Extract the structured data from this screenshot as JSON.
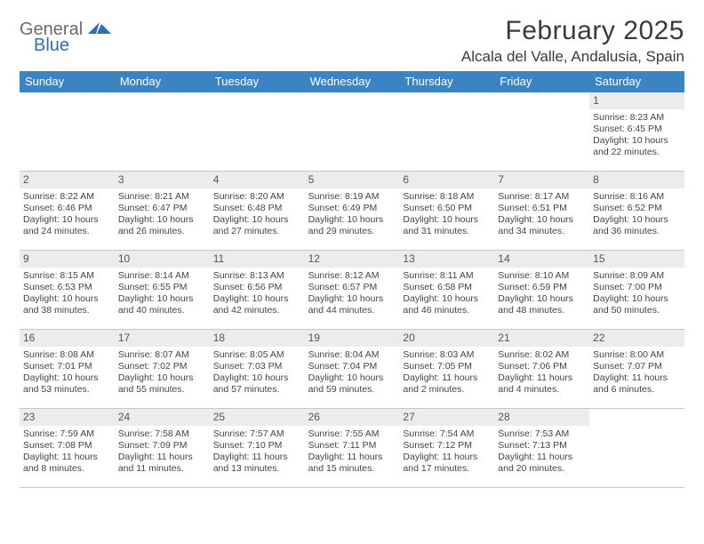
{
  "brand": {
    "part1": "General",
    "part2": "Blue"
  },
  "title": "February 2025",
  "location": "Alcala del Valle, Andalusia, Spain",
  "colors": {
    "header_bg": "#3b84c4",
    "header_text": "#ffffff",
    "daynum_bg": "#ececec",
    "border": "#c7c7c7",
    "brand_gray": "#6b6b6b",
    "brand_blue": "#2f6fb3"
  },
  "weekdays": [
    "Sunday",
    "Monday",
    "Tuesday",
    "Wednesday",
    "Thursday",
    "Friday",
    "Saturday"
  ],
  "weeks": [
    [
      null,
      null,
      null,
      null,
      null,
      null,
      {
        "n": "1",
        "sr": "Sunrise: 8:23 AM",
        "ss": "Sunset: 6:45 PM",
        "d1": "Daylight: 10 hours",
        "d2": "and 22 minutes."
      }
    ],
    [
      {
        "n": "2",
        "sr": "Sunrise: 8:22 AM",
        "ss": "Sunset: 6:46 PM",
        "d1": "Daylight: 10 hours",
        "d2": "and 24 minutes."
      },
      {
        "n": "3",
        "sr": "Sunrise: 8:21 AM",
        "ss": "Sunset: 6:47 PM",
        "d1": "Daylight: 10 hours",
        "d2": "and 26 minutes."
      },
      {
        "n": "4",
        "sr": "Sunrise: 8:20 AM",
        "ss": "Sunset: 6:48 PM",
        "d1": "Daylight: 10 hours",
        "d2": "and 27 minutes."
      },
      {
        "n": "5",
        "sr": "Sunrise: 8:19 AM",
        "ss": "Sunset: 6:49 PM",
        "d1": "Daylight: 10 hours",
        "d2": "and 29 minutes."
      },
      {
        "n": "6",
        "sr": "Sunrise: 8:18 AM",
        "ss": "Sunset: 6:50 PM",
        "d1": "Daylight: 10 hours",
        "d2": "and 31 minutes."
      },
      {
        "n": "7",
        "sr": "Sunrise: 8:17 AM",
        "ss": "Sunset: 6:51 PM",
        "d1": "Daylight: 10 hours",
        "d2": "and 34 minutes."
      },
      {
        "n": "8",
        "sr": "Sunrise: 8:16 AM",
        "ss": "Sunset: 6:52 PM",
        "d1": "Daylight: 10 hours",
        "d2": "and 36 minutes."
      }
    ],
    [
      {
        "n": "9",
        "sr": "Sunrise: 8:15 AM",
        "ss": "Sunset: 6:53 PM",
        "d1": "Daylight: 10 hours",
        "d2": "and 38 minutes."
      },
      {
        "n": "10",
        "sr": "Sunrise: 8:14 AM",
        "ss": "Sunset: 6:55 PM",
        "d1": "Daylight: 10 hours",
        "d2": "and 40 minutes."
      },
      {
        "n": "11",
        "sr": "Sunrise: 8:13 AM",
        "ss": "Sunset: 6:56 PM",
        "d1": "Daylight: 10 hours",
        "d2": "and 42 minutes."
      },
      {
        "n": "12",
        "sr": "Sunrise: 8:12 AM",
        "ss": "Sunset: 6:57 PM",
        "d1": "Daylight: 10 hours",
        "d2": "and 44 minutes."
      },
      {
        "n": "13",
        "sr": "Sunrise: 8:11 AM",
        "ss": "Sunset: 6:58 PM",
        "d1": "Daylight: 10 hours",
        "d2": "and 46 minutes."
      },
      {
        "n": "14",
        "sr": "Sunrise: 8:10 AM",
        "ss": "Sunset: 6:59 PM",
        "d1": "Daylight: 10 hours",
        "d2": "and 48 minutes."
      },
      {
        "n": "15",
        "sr": "Sunrise: 8:09 AM",
        "ss": "Sunset: 7:00 PM",
        "d1": "Daylight: 10 hours",
        "d2": "and 50 minutes."
      }
    ],
    [
      {
        "n": "16",
        "sr": "Sunrise: 8:08 AM",
        "ss": "Sunset: 7:01 PM",
        "d1": "Daylight: 10 hours",
        "d2": "and 53 minutes."
      },
      {
        "n": "17",
        "sr": "Sunrise: 8:07 AM",
        "ss": "Sunset: 7:02 PM",
        "d1": "Daylight: 10 hours",
        "d2": "and 55 minutes."
      },
      {
        "n": "18",
        "sr": "Sunrise: 8:05 AM",
        "ss": "Sunset: 7:03 PM",
        "d1": "Daylight: 10 hours",
        "d2": "and 57 minutes."
      },
      {
        "n": "19",
        "sr": "Sunrise: 8:04 AM",
        "ss": "Sunset: 7:04 PM",
        "d1": "Daylight: 10 hours",
        "d2": "and 59 minutes."
      },
      {
        "n": "20",
        "sr": "Sunrise: 8:03 AM",
        "ss": "Sunset: 7:05 PM",
        "d1": "Daylight: 11 hours",
        "d2": "and 2 minutes."
      },
      {
        "n": "21",
        "sr": "Sunrise: 8:02 AM",
        "ss": "Sunset: 7:06 PM",
        "d1": "Daylight: 11 hours",
        "d2": "and 4 minutes."
      },
      {
        "n": "22",
        "sr": "Sunrise: 8:00 AM",
        "ss": "Sunset: 7:07 PM",
        "d1": "Daylight: 11 hours",
        "d2": "and 6 minutes."
      }
    ],
    [
      {
        "n": "23",
        "sr": "Sunrise: 7:59 AM",
        "ss": "Sunset: 7:08 PM",
        "d1": "Daylight: 11 hours",
        "d2": "and 8 minutes."
      },
      {
        "n": "24",
        "sr": "Sunrise: 7:58 AM",
        "ss": "Sunset: 7:09 PM",
        "d1": "Daylight: 11 hours",
        "d2": "and 11 minutes."
      },
      {
        "n": "25",
        "sr": "Sunrise: 7:57 AM",
        "ss": "Sunset: 7:10 PM",
        "d1": "Daylight: 11 hours",
        "d2": "and 13 minutes."
      },
      {
        "n": "26",
        "sr": "Sunrise: 7:55 AM",
        "ss": "Sunset: 7:11 PM",
        "d1": "Daylight: 11 hours",
        "d2": "and 15 minutes."
      },
      {
        "n": "27",
        "sr": "Sunrise: 7:54 AM",
        "ss": "Sunset: 7:12 PM",
        "d1": "Daylight: 11 hours",
        "d2": "and 17 minutes."
      },
      {
        "n": "28",
        "sr": "Sunrise: 7:53 AM",
        "ss": "Sunset: 7:13 PM",
        "d1": "Daylight: 11 hours",
        "d2": "and 20 minutes."
      },
      null
    ]
  ]
}
